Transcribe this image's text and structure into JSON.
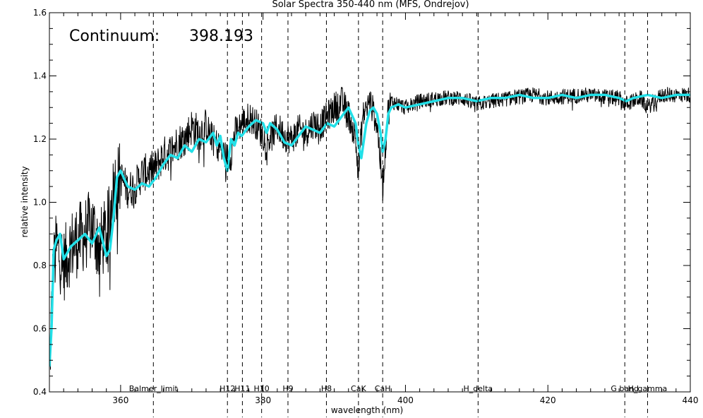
{
  "chart_data": {
    "type": "line",
    "title": "Solar Spectra 350-440 nm (MFS, Ondrejov)",
    "xlabel": "wavelength (nm)",
    "ylabel": "relative intensity",
    "xlim": [
      350,
      440
    ],
    "ylim": [
      0.4,
      1.6
    ],
    "x_ticks": [
      360,
      380,
      400,
      420,
      440
    ],
    "y_ticks": [
      0.4,
      0.6,
      0.8,
      1.0,
      1.2,
      1.4,
      1.6
    ],
    "x_tick_labels": [
      "360",
      "380",
      "400",
      "420",
      "440"
    ],
    "y_tick_labels": [
      "0.4",
      "0.6",
      "0.8",
      "1.0",
      "1.2",
      "1.4",
      "1.6"
    ],
    "annotation": {
      "label": "Continuum:",
      "value": "398.193"
    },
    "lines": [
      {
        "label": "Balmer_limit",
        "x": 364.6
      },
      {
        "label": "H12",
        "x": 375.0
      },
      {
        "label": "H11",
        "x": 377.1
      },
      {
        "label": "H10",
        "x": 379.8
      },
      {
        "label": "H9",
        "x": 383.5
      },
      {
        "label": "H8",
        "x": 388.9
      },
      {
        "label": "CaK",
        "x": 393.4
      },
      {
        "label": "CaH",
        "x": 396.8
      },
      {
        "label": "H_delta",
        "x": 410.2
      },
      {
        "label": "G band",
        "x": 430.8
      },
      {
        "label": "H_gamma",
        "x": 434.0
      }
    ],
    "series": [
      {
        "color": "#000000",
        "style": "noisy",
        "x": [
          350,
          350.5,
          351,
          352,
          353,
          354,
          355,
          356,
          357,
          358,
          358.5,
          359,
          360,
          361,
          362,
          363,
          364,
          365,
          366,
          367,
          368,
          369,
          370,
          371,
          372,
          373,
          374,
          375,
          375.5,
          376,
          377,
          378,
          379,
          380,
          381,
          382,
          383,
          384,
          385,
          386,
          387,
          388,
          389,
          390,
          391,
          392,
          393,
          393.4,
          394,
          395,
          396,
          396.8,
          397.5,
          398,
          400,
          402,
          405,
          408,
          410,
          412,
          415,
          418,
          420,
          425,
          430,
          430.8,
          433,
          434,
          436,
          438,
          440
        ],
        "y": [
          0.45,
          0.78,
          0.86,
          0.8,
          0.86,
          0.88,
          0.9,
          0.93,
          0.86,
          0.9,
          0.95,
          1.05,
          1.08,
          1.04,
          1.05,
          1.09,
          1.1,
          1.11,
          1.15,
          1.16,
          1.19,
          1.2,
          1.24,
          1.22,
          1.24,
          1.2,
          1.17,
          1.14,
          1.15,
          1.22,
          1.25,
          1.27,
          1.25,
          1.21,
          1.2,
          1.24,
          1.21,
          1.2,
          1.23,
          1.22,
          1.25,
          1.24,
          1.27,
          1.3,
          1.32,
          1.28,
          1.2,
          1.1,
          1.27,
          1.32,
          1.25,
          1.05,
          1.28,
          1.32,
          1.3,
          1.32,
          1.33,
          1.33,
          1.31,
          1.32,
          1.33,
          1.34,
          1.33,
          1.34,
          1.33,
          1.31,
          1.33,
          1.3,
          1.34,
          1.34,
          1.34
        ]
      },
      {
        "color": "#22e0e8",
        "style": "smooth",
        "x": [
          350,
          350.3,
          350.6,
          351,
          351.5,
          352,
          353,
          354,
          355,
          356,
          357,
          358,
          358.5,
          359,
          359.5,
          360,
          361,
          362,
          363,
          364,
          365,
          366,
          367,
          368,
          369,
          370,
          371,
          372,
          373,
          373.5,
          374,
          374.5,
          375,
          375.5,
          376,
          376.5,
          377,
          378,
          379,
          380,
          380.5,
          381,
          382,
          383,
          384,
          385,
          386,
          387,
          388,
          389,
          390,
          391,
          392,
          393,
          393.4,
          393.8,
          394.5,
          395,
          395.5,
          396,
          396.5,
          396.8,
          397.2,
          397.6,
          398,
          399,
          400,
          402,
          404,
          406,
          408,
          410,
          412,
          414,
          416,
          418,
          420,
          422,
          424,
          426,
          428,
          430,
          431,
          432,
          434,
          436,
          438,
          440
        ],
        "y": [
          0.48,
          0.6,
          0.85,
          0.88,
          0.9,
          0.82,
          0.86,
          0.88,
          0.9,
          0.87,
          0.92,
          0.83,
          0.85,
          0.95,
          1.08,
          1.1,
          1.05,
          1.04,
          1.06,
          1.05,
          1.08,
          1.12,
          1.15,
          1.14,
          1.18,
          1.16,
          1.2,
          1.19,
          1.22,
          1.18,
          1.21,
          1.14,
          1.1,
          1.2,
          1.18,
          1.22,
          1.21,
          1.24,
          1.26,
          1.25,
          1.22,
          1.25,
          1.23,
          1.19,
          1.18,
          1.21,
          1.24,
          1.23,
          1.22,
          1.25,
          1.24,
          1.27,
          1.3,
          1.25,
          1.18,
          1.14,
          1.25,
          1.29,
          1.3,
          1.28,
          1.22,
          1.16,
          1.2,
          1.28,
          1.3,
          1.31,
          1.3,
          1.31,
          1.32,
          1.33,
          1.33,
          1.32,
          1.33,
          1.33,
          1.34,
          1.33,
          1.33,
          1.34,
          1.33,
          1.34,
          1.34,
          1.33,
          1.32,
          1.33,
          1.34,
          1.33,
          1.34,
          1.34
        ]
      }
    ]
  }
}
